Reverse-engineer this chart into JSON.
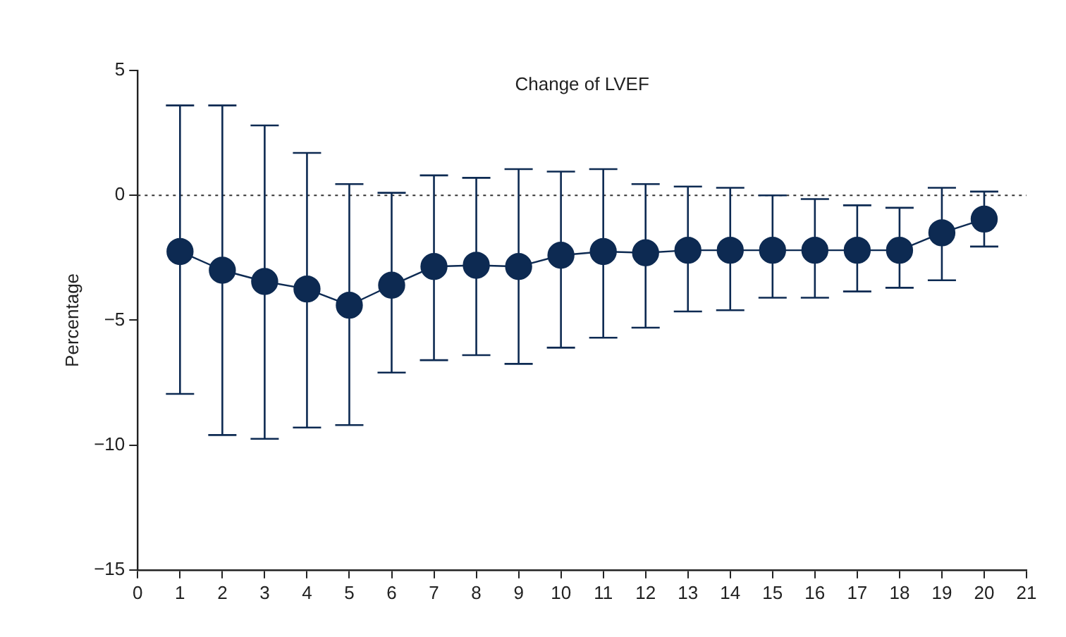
{
  "chart_data": {
    "type": "line",
    "title": "Change of LVEF",
    "ylabel": "Percentage",
    "x": [
      1,
      2,
      3,
      4,
      5,
      6,
      7,
      8,
      9,
      10,
      11,
      12,
      13,
      14,
      15,
      16,
      17,
      18,
      19,
      20
    ],
    "series": [
      {
        "color": "#0d2a52",
        "values": [
          -2.25,
          -3.0,
          -3.45,
          -3.75,
          -4.4,
          -3.6,
          -2.85,
          -2.8,
          -2.85,
          -2.4,
          -2.25,
          -2.3,
          -2.2,
          -2.2,
          -2.2,
          -2.2,
          -2.2,
          -2.2,
          -1.5,
          -0.95
        ],
        "errors": [
          [
            -7.95,
            3.6
          ],
          [
            -9.6,
            3.6
          ],
          [
            -9.75,
            2.8
          ],
          [
            -9.3,
            1.7
          ],
          [
            -9.2,
            0.45
          ],
          [
            -7.1,
            0.1
          ],
          [
            -6.6,
            0.8
          ],
          [
            -6.4,
            0.7
          ],
          [
            -6.75,
            1.05
          ],
          [
            -6.1,
            0.95
          ],
          [
            -5.7,
            1.05
          ],
          [
            -5.3,
            0.45
          ],
          [
            -4.65,
            0.35
          ],
          [
            -4.6,
            0.3
          ],
          [
            -4.1,
            0
          ],
          [
            -4.1,
            -0.15
          ],
          [
            -3.85,
            -0.4
          ],
          [
            -3.7,
            -0.5
          ],
          [
            -3.4,
            0.3
          ],
          [
            -2.05,
            0.15
          ]
        ]
      }
    ],
    "xlim": [
      0,
      21
    ],
    "xticks": [
      0,
      1,
      2,
      3,
      4,
      5,
      6,
      7,
      8,
      9,
      10,
      11,
      12,
      13,
      14,
      15,
      16,
      17,
      18,
      19,
      20,
      21
    ],
    "ylim": [
      -15,
      5
    ],
    "yticks": [
      -15,
      -10,
      -5,
      0,
      5
    ],
    "ref_lines": [
      {
        "axis": "y",
        "value": 0,
        "line_style": "dotted",
        "color": "#333333"
      }
    ],
    "marker": "circle",
    "line_style": "solid",
    "grid": false,
    "legend": false
  }
}
